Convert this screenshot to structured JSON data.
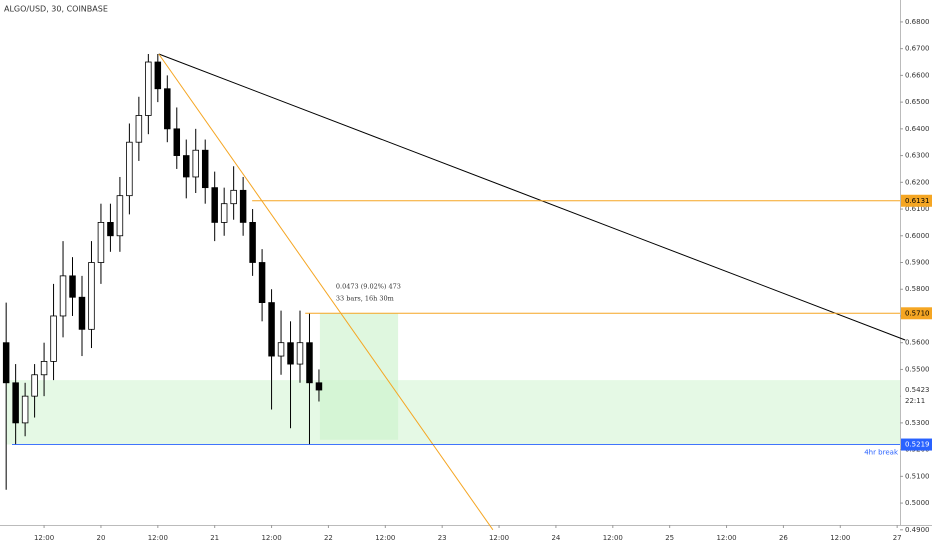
{
  "chart_data": {
    "type": "candlestick",
    "title": "ALGO/USD, 30, COINBASE",
    "x": [
      4,
      6,
      8,
      10,
      12,
      14,
      16,
      18,
      20,
      22,
      24,
      26,
      28,
      30,
      32,
      34,
      36,
      38,
      40,
      42,
      44,
      46,
      48,
      50,
      52,
      54,
      56,
      58,
      60,
      62,
      64,
      66,
      68,
      70
    ],
    "open": [
      0.56,
      0.545,
      0.53,
      0.54,
      0.548,
      0.553,
      0.57,
      0.585,
      0.577,
      0.565,
      0.59,
      0.605,
      0.6,
      0.615,
      0.635,
      0.645,
      0.665,
      0.655,
      0.64,
      0.63,
      0.622,
      0.632,
      0.618,
      0.605,
      0.612,
      0.617,
      0.605,
      0.59,
      0.575,
      0.555,
      0.56,
      0.552,
      0.56,
      0.545
    ],
    "high": [
      0.575,
      0.552,
      0.545,
      0.552,
      0.56,
      0.582,
      0.598,
      0.592,
      0.585,
      0.598,
      0.612,
      0.612,
      0.622,
      0.642,
      0.652,
      0.668,
      0.668,
      0.66,
      0.648,
      0.636,
      0.64,
      0.636,
      0.624,
      0.618,
      0.626,
      0.622,
      0.61,
      0.595,
      0.58,
      0.572,
      0.568,
      0.572,
      0.571,
      0.55
    ],
    "low": [
      0.505,
      0.522,
      0.525,
      0.532,
      0.54,
      0.546,
      0.562,
      0.57,
      0.555,
      0.558,
      0.582,
      0.594,
      0.594,
      0.608,
      0.628,
      0.638,
      0.65,
      0.635,
      0.625,
      0.614,
      0.616,
      0.612,
      0.598,
      0.6,
      0.606,
      0.6,
      0.585,
      0.568,
      0.535,
      0.548,
      0.528,
      0.545,
      0.522,
      0.538
    ],
    "close": [
      0.545,
      0.53,
      0.54,
      0.548,
      0.553,
      0.57,
      0.585,
      0.577,
      0.565,
      0.59,
      0.605,
      0.6,
      0.615,
      0.635,
      0.645,
      0.665,
      0.655,
      0.64,
      0.63,
      0.622,
      0.632,
      0.618,
      0.605,
      0.612,
      0.617,
      0.605,
      0.59,
      0.575,
      0.555,
      0.56,
      0.552,
      0.56,
      0.545,
      0.5423
    ],
    "xlim": [
      2.7,
      192.6
    ],
    "ylim": [
      0.4918,
      0.6882
    ],
    "xticks": [
      {
        "value": 12,
        "label": "12:00"
      },
      {
        "value": 24,
        "label": "20"
      },
      {
        "value": 36,
        "label": "12:00"
      },
      {
        "value": 48,
        "label": "21"
      },
      {
        "value": 60,
        "label": "12:00"
      },
      {
        "value": 72,
        "label": "22"
      },
      {
        "value": 84,
        "label": "12:00"
      },
      {
        "value": 96,
        "label": "23"
      },
      {
        "value": 108,
        "label": "12:00"
      },
      {
        "value": 120,
        "label": "24"
      },
      {
        "value": 132,
        "label": "12:00"
      },
      {
        "value": 144,
        "label": "25"
      },
      {
        "value": 156,
        "label": "12:00"
      },
      {
        "value": 168,
        "label": "26"
      },
      {
        "value": 180,
        "label": "12:00"
      },
      {
        "value": 192,
        "label": "27"
      }
    ],
    "yticks": [
      {
        "value": 0.49,
        "label": "0.4900"
      },
      {
        "value": 0.5,
        "label": "0.5000"
      },
      {
        "value": 0.51,
        "label": "0.5100"
      },
      {
        "value": 0.52,
        "label": "0.5200"
      },
      {
        "value": 0.53,
        "label": "0.5300"
      },
      {
        "value": 0.54,
        "label": "0.5400"
      },
      {
        "value": 0.55,
        "label": "0.5500"
      },
      {
        "value": 0.56,
        "label": "0.5600"
      },
      {
        "value": 0.57,
        "label": "0.5700"
      },
      {
        "value": 0.58,
        "label": "0.5800"
      },
      {
        "value": 0.59,
        "label": "0.5900"
      },
      {
        "value": 0.6,
        "label": "0.6000"
      },
      {
        "value": 0.61,
        "label": "0.6100"
      },
      {
        "value": 0.62,
        "label": "0.6200"
      },
      {
        "value": 0.63,
        "label": "0.6300"
      },
      {
        "value": 0.64,
        "label": "0.6400"
      },
      {
        "value": 0.65,
        "label": "0.6500"
      },
      {
        "value": 0.66,
        "label": "0.6600"
      },
      {
        "value": 0.67,
        "label": "0.6700"
      },
      {
        "value": 0.68,
        "label": "0.6800"
      }
    ],
    "up_color": "#ffffff",
    "down_color": "#000000",
    "trendlines": [
      {
        "x": [
          36.2,
          193.7
        ],
        "y": [
          0.668,
          0.561
        ],
        "color": "#000000"
      },
      {
        "x": [
          36.2,
          106.7
        ],
        "y": [
          0.668,
          0.49
        ],
        "color": "#f5a623"
      }
    ],
    "levels": [
      {
        "value": 0.6131,
        "label": "0.6131",
        "x_start": 55.9,
        "color": "#f5a623"
      },
      {
        "value": 0.571,
        "label": "0.5710",
        "x_start": 67.1,
        "color": "#f5a623"
      }
    ],
    "support": {
      "value": 0.5219,
      "label": "0.5219",
      "note": "4hr break",
      "color": "#2962ff"
    },
    "zone": {
      "y": [
        0.5219,
        0.546
      ],
      "x_start": 4,
      "color": "#dff7df"
    },
    "measure": {
      "x": [
        70.2,
        86.7
      ],
      "y": [
        0.5237,
        0.571
      ],
      "color": "#c9f2c9",
      "labels": [
        "0.0473 (9.02%) 473",
        "33 bars, 16h 30m"
      ]
    },
    "last": {
      "value": 0.5423,
      "label": "0.5423",
      "countdown": "22:11"
    }
  }
}
